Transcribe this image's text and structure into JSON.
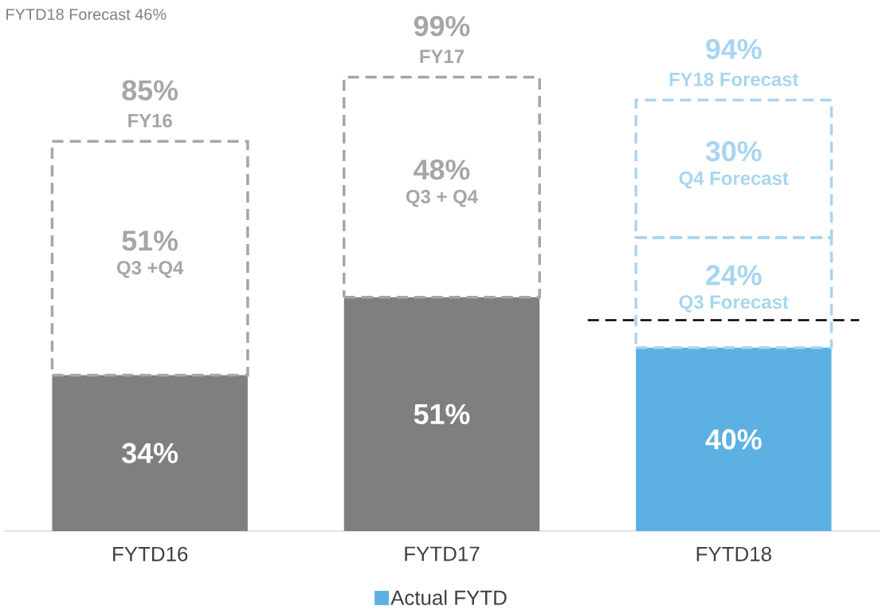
{
  "chart_data": {
    "type": "bar",
    "stacked": true,
    "categories": [
      "FYTD16",
      "FYTD17",
      "FYTD18"
    ],
    "series": [
      {
        "name": "Actual FYTD",
        "color": "#5db1e2",
        "colors": [
          "#7f7f7f",
          "#7f7f7f",
          "#5db1e2"
        ],
        "values": [
          34,
          51,
          40
        ],
        "value_labels": [
          "34%",
          "51%",
          "40%"
        ]
      },
      {
        "colors": [
          "#a6a6a6",
          "#a6a6a6",
          "#a8d5ef"
        ],
        "values": [
          51,
          48,
          24
        ],
        "value_labels": [
          "51%",
          "48%",
          "24%"
        ],
        "line_style": "dashed"
      },
      {
        "colors": [
          "#a8d5ef",
          "#a8d5ef",
          "#a8d5ef"
        ],
        "values": [
          null,
          null,
          30
        ],
        "value_labels": [
          null,
          null,
          "30%"
        ],
        "line_style": "dashed"
      }
    ],
    "totals": [
      "85%",
      "99%",
      "94%"
    ],
    "annotations": [
      "Q3 +Q4",
      "Q3 + Q4",
      "Q3 Forecast",
      "Q4 Forecast",
      "FY16",
      "FY17",
      "FY18 Forecast",
      "FYTD18 Forecast 46%"
    ],
    "ref_lines": [
      {
        "axis": "y",
        "value": 46,
        "color": "#000000",
        "line_style": "dashed"
      }
    ],
    "legend": "bottom"
  }
}
